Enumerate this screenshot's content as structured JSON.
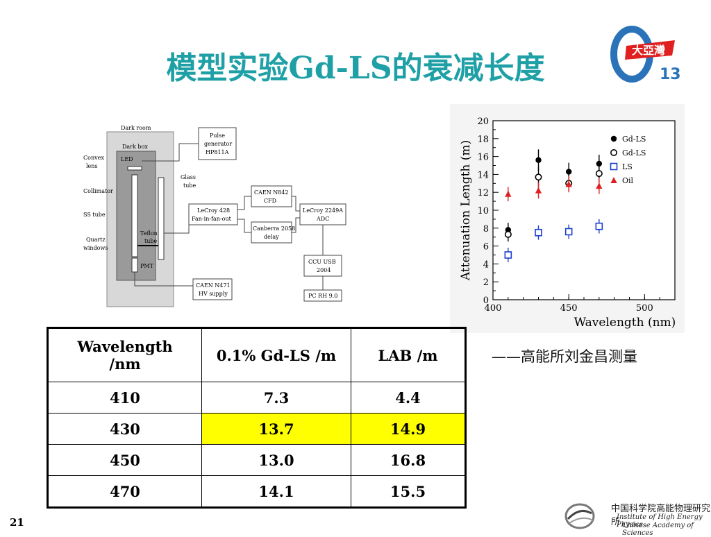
{
  "slide": {
    "title": "模型实验Gd-LS的衰减长度",
    "page_number": "21",
    "credit": "——高能所刘金昌测量"
  },
  "logo_dayabay": {
    "number": "13",
    "text": "大亞灣"
  },
  "diagram": {
    "dark_room": "Dark room",
    "dark_box": "Dark box",
    "led": "LED",
    "convex1": "Convex",
    "convex2": "lens",
    "collimator": "Collimator",
    "ss_tube": "SS tube",
    "quartz1": "Quartz",
    "quartz2": "windows",
    "teflon1": "Teflon",
    "teflon2": "tube",
    "pmt": "PMT",
    "glass1": "Glass",
    "glass2": "tube",
    "pulse1": "Pulse",
    "pulse2": "generator",
    "pulse3": "HP811A",
    "caen_n842_1": "CAEN N842",
    "caen_n842_2": "CFD",
    "lecroy428_1": "LeCroy 428",
    "lecroy428_2": "Fan-in-fan-out",
    "lecroy2249_1": "LeCroy 2249A",
    "lecroy2249_2": "ADC",
    "canberra1": "Canberra 2058",
    "canberra2": "delay",
    "ccu1": "CCU USB",
    "ccu2": "2004",
    "pc": "PC RH 9.0",
    "caen_n471_1": "CAEN N471",
    "caen_n471_2": "HV supply"
  },
  "chart_data": {
    "type": "scatter",
    "xlabel": "Wavelength (nm)",
    "ylabel": "Attenuation Length (m)",
    "xlim": [
      400,
      520
    ],
    "ylim": [
      0,
      20
    ],
    "x_ticks": [
      400,
      450,
      500
    ],
    "y_ticks": [
      0,
      2,
      4,
      6,
      8,
      10,
      12,
      14,
      16,
      18,
      20
    ],
    "legend_position": "top-right",
    "series": [
      {
        "name": "Gd-LS",
        "marker": "filled-circle",
        "color": "#000000",
        "points": [
          [
            410,
            7.8,
            0.8
          ],
          [
            430,
            15.6,
            1.2
          ],
          [
            450,
            14.3,
            1.0
          ],
          [
            470,
            15.2,
            1.0
          ]
        ]
      },
      {
        "name": "Gd-LS",
        "marker": "open-circle",
        "color": "#000000",
        "points": [
          [
            410,
            7.3,
            0.8
          ],
          [
            430,
            13.7,
            1.2
          ],
          [
            450,
            13.0,
            0.9
          ],
          [
            470,
            14.1,
            1.0
          ]
        ]
      },
      {
        "name": "LS",
        "marker": "open-square",
        "color": "#1a3fd0",
        "points": [
          [
            410,
            5.0,
            0.8
          ],
          [
            430,
            7.5,
            0.8
          ],
          [
            450,
            7.6,
            0.8
          ],
          [
            470,
            8.2,
            0.8
          ]
        ]
      },
      {
        "name": "Oil",
        "marker": "filled-triangle",
        "color": "#e02020",
        "points": [
          [
            410,
            11.8,
            0.8
          ],
          [
            430,
            12.2,
            0.9
          ],
          [
            450,
            12.9,
            0.9
          ],
          [
            470,
            12.7,
            0.9
          ]
        ]
      }
    ]
  },
  "table": {
    "headers": [
      "Wavelength /nm",
      "0.1% Gd-LS /m",
      "LAB /m"
    ],
    "header_col1_line1": "Wavelength",
    "header_col1_line2": "/nm",
    "rows": [
      [
        "410",
        "7.3",
        "4.4"
      ],
      [
        "430",
        "13.7",
        "14.9"
      ],
      [
        "450",
        "13.0",
        "16.8"
      ],
      [
        "470",
        "14.1",
        "15.5"
      ]
    ],
    "highlight_color": "#ffff00"
  },
  "ihep": {
    "cn": "中国科学院高能物理研究所",
    "en1": "Institute of High Energy Physics",
    "en2": "Chinese Academy of Sciences"
  }
}
